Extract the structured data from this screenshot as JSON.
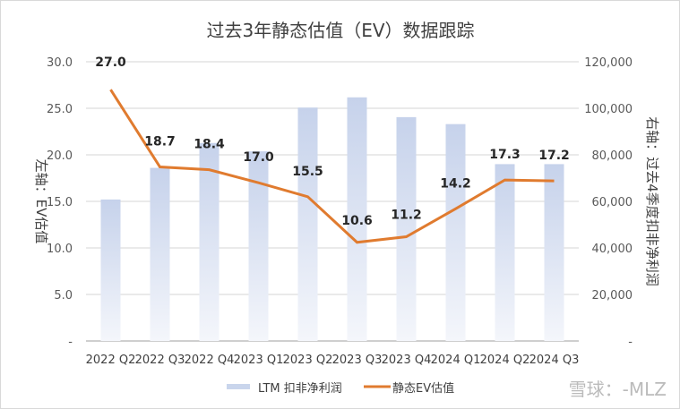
{
  "chart_data": {
    "type": "bar+line",
    "title": "过去3年静态估值（EV）数据跟踪",
    "categories": [
      "2022 Q2",
      "2022 Q3",
      "2022 Q4",
      "2023 Q1",
      "2023 Q2",
      "2023 Q3",
      "2023 Q4",
      "2024 Q1",
      "2024 Q2",
      "2024 Q3"
    ],
    "series": [
      {
        "name": "LTM 扣非净利润",
        "type": "bar",
        "axis": "right",
        "color": "#c9d5ec",
        "values": [
          60800,
          74400,
          85100,
          81500,
          100300,
          104700,
          96200,
          93200,
          76000,
          76000
        ]
      },
      {
        "name": "静态EV估值",
        "type": "line",
        "axis": "left",
        "color": "#e07b2f",
        "values": [
          27.0,
          18.7,
          18.4,
          17.0,
          15.5,
          10.6,
          11.2,
          14.2,
          17.3,
          17.2
        ],
        "labels": [
          "27.0",
          "18.7",
          "18.4",
          "17.0",
          "15.5",
          "10.6",
          "11.2",
          "14.2",
          "17.3",
          "17.2"
        ]
      }
    ],
    "ylabel": "左轴：EV估值",
    "y2label": "右轴：过去4季度扣非净利润",
    "ylim": [
      0,
      30
    ],
    "y2lim": [
      0,
      120000
    ],
    "yticks": [
      "-",
      "5.0",
      "10.0",
      "15.0",
      "20.0",
      "25.0",
      "30.0"
    ],
    "y2ticks": [
      "-",
      "20,000",
      "40,000",
      "60,000",
      "80,000",
      "100,000",
      "120,000"
    ],
    "grid": true,
    "legend": "bottom"
  },
  "watermark": "雪球：-MLZ"
}
